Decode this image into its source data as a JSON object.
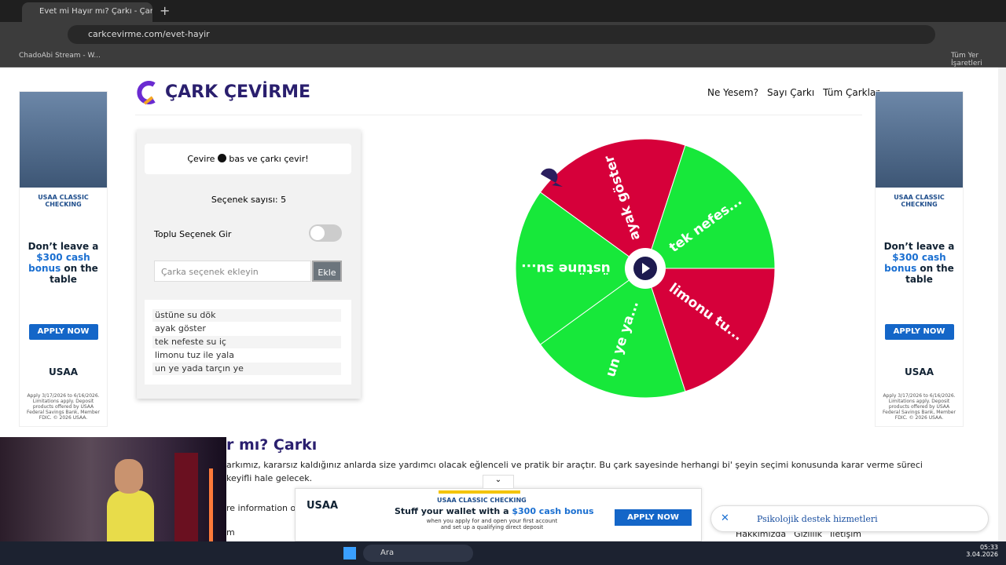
{
  "browser": {
    "tab_title": "Evet mi Hayır mı? Çarkı - Çark Çev",
    "url": "carkcevirme.com/evet-hayir",
    "bookmark": "ChadoAbi Stream - W...",
    "bookmarks_folder": "Tüm Yer İşaretleri"
  },
  "header": {
    "logo": "ÇARK ÇEVİRME",
    "nav": [
      "Ne Yesem?",
      "Sayı Çarkı",
      "Tüm Çarklar"
    ]
  },
  "panel": {
    "hint_before": "Çevire",
    "hint_after": "bas ve çarkı çevir!",
    "count": "Seçenek sayısı: 5",
    "bulk_toggle": "Toplu Seçenek Gir",
    "input_placeholder": "Çarka seçenek ekleyin",
    "add_button": "Ekle",
    "options": [
      "üstüne su dök",
      "ayak göster",
      "tek nefeste su iç",
      "limonu tuz ile yala",
      "un ye yada tarçın ye"
    ]
  },
  "wheel": {
    "segments": [
      "ayak göster",
      "tek nefes...",
      "limonu tu...",
      "un ye ya...",
      "üstüne su..."
    ]
  },
  "article": {
    "heading": "r mı? Çarkı",
    "line1": "arkımız, kararsız kaldığınız anlarda size yardımcı olacak eğlenceli ve pratik bir araçtır. Bu çark sayesinde herhangi bi' şeyin seçimi konusunda karar verme süreci",
    "line2": "keyifli hale gelecek.",
    "line3": "re information on",
    "line4": "m"
  },
  "side_ad": {
    "brand_line": "USAA CLASSIC CHECKING",
    "headline_a": "Don’t leave a",
    "headline_b": "$300 cash bonus",
    "headline_c": "on the table",
    "button": "APPLY NOW",
    "logo": "USAA",
    "fine": "Apply 3/17/2026 to 6/16/2026. Limitations apply. Deposit products offered by USAA Federal Savings Bank, Member FDIC. © 2026 USAA."
  },
  "bottom_ad": {
    "brand_line": "USAA CLASSIC CHECKING",
    "headline_a": "Stuff your wallet with a",
    "headline_b": "$300 cash bonus",
    "sub1": "when you apply for and open your first account",
    "sub2": "and set up a qualifying direct deposit",
    "button": "APPLY NOW",
    "logo": "USAA"
  },
  "notification": {
    "text": "Psikolojik destek hizmetleri"
  },
  "footer": {
    "links": [
      "Hakkımızda",
      "Gizlilik",
      "İletişim"
    ]
  },
  "taskbar": {
    "search": "Ara",
    "time": "05:33",
    "date": "3.04.2026"
  }
}
